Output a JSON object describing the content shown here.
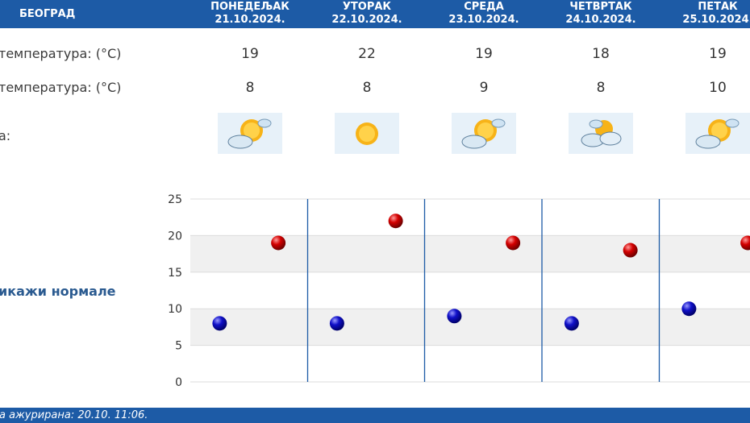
{
  "header": {
    "city": "БЕОГРАД",
    "days": [
      {
        "name": "ПОНЕДЕЉАК",
        "date": "21.10.2024."
      },
      {
        "name": "УТОРАК",
        "date": "22.10.2024."
      },
      {
        "name": "СРЕДА",
        "date": "23.10.2024."
      },
      {
        "name": "ЧЕТВРТАК",
        "date": "24.10.2024."
      },
      {
        "name": "ПЕТАК",
        "date": "25.10.2024."
      }
    ]
  },
  "rows": {
    "max_label": "температура: (°C)",
    "min_label": "температура: (°C)",
    "icon_label": "а:",
    "max_values": [
      "19",
      "22",
      "19",
      "18",
      "19"
    ],
    "min_values": [
      "8",
      "8",
      "9",
      "8",
      "10"
    ],
    "icons": [
      "partly-cloudy-icon",
      "sunny-icon",
      "partly-cloudy-icon",
      "cloudy-sun-icon",
      "partly-cloudy-icon"
    ]
  },
  "normals_link": "икажи нормале",
  "footer": "а ажурирана:  20.10. 11:06.",
  "colors": {
    "header_bg": "#1d5ba6",
    "max_marker": "#c80000",
    "min_marker": "#0a0ab4",
    "band": "#f0f0f0",
    "divider": "#1d5ba6"
  },
  "chart_data": {
    "type": "scatter",
    "categories": [
      "21.10.2024.",
      "22.10.2024.",
      "23.10.2024.",
      "24.10.2024.",
      "25.10.2024."
    ],
    "series": [
      {
        "values": [
          19,
          22,
          19,
          18,
          19
        ],
        "color": "#c80000"
      },
      {
        "values": [
          8,
          8,
          9,
          8,
          10
        ],
        "color": "#0a0ab4"
      }
    ],
    "yticks": [
      "0",
      "5",
      "10",
      "15",
      "20",
      "25"
    ],
    "ylim": [
      0,
      25
    ],
    "grid": true
  }
}
